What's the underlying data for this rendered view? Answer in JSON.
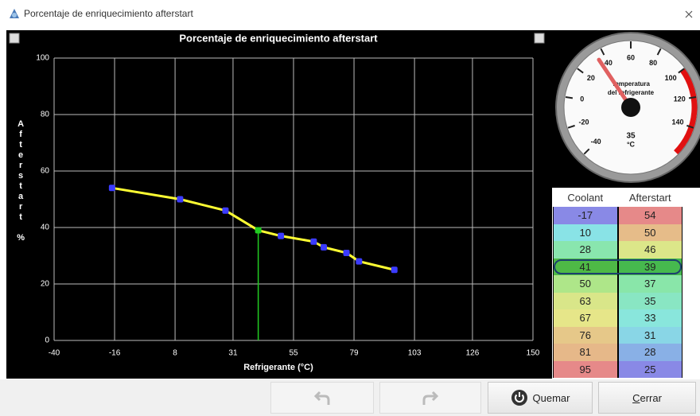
{
  "window": {
    "title": "Porcentaje de enriquecimiento afterstart"
  },
  "chart_data": {
    "type": "line",
    "title": "Porcentaje de enriquecimiento afterstart",
    "xlabel": "Refrigerante (°C)",
    "ylabel": "Afterstart %",
    "x": [
      -17,
      10,
      28,
      41,
      50,
      63,
      67,
      76,
      81,
      95
    ],
    "series": [
      {
        "name": "Afterstart",
        "color": "#ffff33",
        "values": [
          54,
          50,
          46,
          39,
          37,
          35,
          33,
          31,
          28,
          25
        ]
      }
    ],
    "marker_color": "#3b3bff",
    "selected": 3,
    "selected_color": "#22cc22",
    "xlim": [
      -40,
      150
    ],
    "xticks": [
      -40,
      -16,
      8,
      31,
      55,
      79,
      103,
      126,
      150
    ],
    "ylim": [
      0,
      100
    ],
    "yticks": [
      0,
      20,
      40,
      60,
      80,
      100
    ],
    "grid": true
  },
  "gauge": {
    "title": [
      "Temperatura",
      "del refrigerante"
    ],
    "value": 35,
    "unit": "°C",
    "lim": [
      -40,
      160
    ],
    "ticks": [
      -40,
      -20,
      0,
      20,
      40,
      60,
      80,
      100,
      120,
      140
    ],
    "red_zone": [
      100,
      160
    ]
  },
  "table": {
    "headers": [
      "Coolant",
      "Afterstart"
    ]
  },
  "buttons": {
    "burn": "Quemar",
    "close": "Cerrar"
  }
}
